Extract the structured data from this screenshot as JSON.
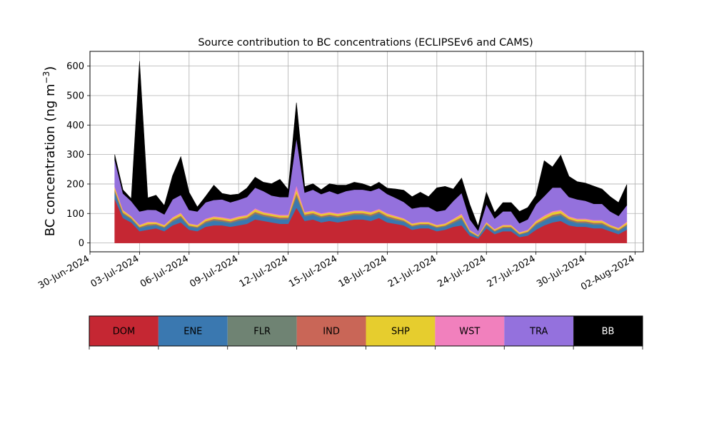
{
  "chart_data": {
    "type": "area",
    "title": "Source contribution to BC concentrations (ECLIPSEv6 and CAMS)",
    "ylabel_main": "BC concentration (ng m",
    "ylabel_exp": "−3",
    "ylabel_close": ")",
    "xlabel": "",
    "ylim": [
      -30,
      650
    ],
    "yticks": [
      0,
      100,
      200,
      300,
      400,
      500,
      600
    ],
    "x_range": [
      "2024-06-30T00:00",
      "2024-08-02T12:00"
    ],
    "xticks": [
      {
        "date": "2024-06-30",
        "label": "30-Jun-2024"
      },
      {
        "date": "2024-07-03",
        "label": "03-Jul-2024"
      },
      {
        "date": "2024-07-06",
        "label": "06-Jul-2024"
      },
      {
        "date": "2024-07-09",
        "label": "09-Jul-2024"
      },
      {
        "date": "2024-07-12",
        "label": "12-Jul-2024"
      },
      {
        "date": "2024-07-15",
        "label": "15-Jul-2024"
      },
      {
        "date": "2024-07-18",
        "label": "18-Jul-2024"
      },
      {
        "date": "2024-07-21",
        "label": "21-Jul-2024"
      },
      {
        "date": "2024-07-24",
        "label": "24-Jul-2024"
      },
      {
        "date": "2024-07-27",
        "label": "27-Jul-2024"
      },
      {
        "date": "2024-07-30",
        "label": "30-Jul-2024"
      },
      {
        "date": "2024-08-02",
        "label": "02-Aug-2024"
      }
    ],
    "grid": true,
    "legend_placement": "bottom colorbar",
    "series": [
      {
        "name": "DOM",
        "color": "#c52733"
      },
      {
        "name": "ENE",
        "color": "#3a78b0"
      },
      {
        "name": "FLR",
        "color": "#6f8373"
      },
      {
        "name": "IND",
        "color": "#c96657"
      },
      {
        "name": "SHP",
        "color": "#e6cd2e"
      },
      {
        "name": "WST",
        "color": "#f180bd"
      },
      {
        "name": "TRA",
        "color": "#9471dd"
      },
      {
        "name": "BB",
        "color": "#000000"
      }
    ],
    "x": [
      "2024-07-01T12:00",
      "2024-07-02T00:00",
      "2024-07-02T12:00",
      "2024-07-03T00:00",
      "2024-07-03T12:00",
      "2024-07-04T00:00",
      "2024-07-04T12:00",
      "2024-07-05T00:00",
      "2024-07-05T12:00",
      "2024-07-06T00:00",
      "2024-07-06T12:00",
      "2024-07-07T00:00",
      "2024-07-07T12:00",
      "2024-07-08T00:00",
      "2024-07-08T12:00",
      "2024-07-09T00:00",
      "2024-07-09T12:00",
      "2024-07-10T00:00",
      "2024-07-10T12:00",
      "2024-07-11T00:00",
      "2024-07-11T12:00",
      "2024-07-12T00:00",
      "2024-07-12T12:00",
      "2024-07-13T00:00",
      "2024-07-13T12:00",
      "2024-07-14T00:00",
      "2024-07-14T12:00",
      "2024-07-15T00:00",
      "2024-07-15T12:00",
      "2024-07-16T00:00",
      "2024-07-16T12:00",
      "2024-07-17T00:00",
      "2024-07-17T12:00",
      "2024-07-18T00:00",
      "2024-07-18T12:00",
      "2024-07-19T00:00",
      "2024-07-19T12:00",
      "2024-07-20T00:00",
      "2024-07-20T12:00",
      "2024-07-21T00:00",
      "2024-07-21T12:00",
      "2024-07-22T00:00",
      "2024-07-22T12:00",
      "2024-07-23T00:00",
      "2024-07-23T12:00",
      "2024-07-24T00:00",
      "2024-07-24T12:00",
      "2024-07-25T00:00",
      "2024-07-25T12:00",
      "2024-07-26T00:00",
      "2024-07-26T12:00",
      "2024-07-27T00:00",
      "2024-07-27T12:00",
      "2024-07-28T00:00",
      "2024-07-28T12:00",
      "2024-07-29T00:00",
      "2024-07-29T12:00",
      "2024-07-30T00:00",
      "2024-07-30T12:00",
      "2024-07-31T00:00",
      "2024-07-31T12:00",
      "2024-08-01T00:00",
      "2024-08-01T12:00"
    ],
    "stack_values": {
      "DOM": [
        150,
        85,
        70,
        40,
        45,
        50,
        40,
        60,
        70,
        45,
        40,
        55,
        60,
        60,
        55,
        60,
        65,
        80,
        75,
        70,
        65,
        65,
        120,
        75,
        80,
        70,
        75,
        70,
        75,
        80,
        80,
        75,
        85,
        70,
        65,
        60,
        45,
        50,
        50,
        40,
        45,
        55,
        60,
        25,
        15,
        50,
        30,
        40,
        40,
        20,
        25,
        45,
        60,
        70,
        75,
        60,
        55,
        55,
        50,
        50,
        40,
        30,
        45
      ],
      "ENE": [
        20,
        12,
        10,
        10,
        12,
        10,
        10,
        12,
        15,
        10,
        10,
        12,
        15,
        12,
        12,
        15,
        15,
        18,
        15,
        15,
        15,
        15,
        35,
        15,
        15,
        15,
        15,
        15,
        15,
        15,
        15,
        15,
        15,
        15,
        12,
        12,
        10,
        10,
        10,
        10,
        10,
        12,
        20,
        10,
        5,
        10,
        8,
        10,
        10,
        8,
        10,
        15,
        15,
        18,
        18,
        15,
        12,
        12,
        12,
        12,
        10,
        10,
        12
      ],
      "FLR": [
        6,
        4,
        3,
        3,
        4,
        3,
        3,
        4,
        5,
        3,
        3,
        4,
        4,
        4,
        4,
        4,
        4,
        5,
        4,
        4,
        4,
        4,
        8,
        4,
        4,
        4,
        4,
        4,
        4,
        4,
        4,
        4,
        4,
        4,
        4,
        3,
        3,
        3,
        3,
        3,
        3,
        4,
        5,
        2,
        2,
        3,
        2,
        3,
        3,
        2,
        2,
        4,
        4,
        5,
        5,
        4,
        4,
        4,
        4,
        4,
        3,
        3,
        4
      ],
      "IND": [
        4,
        3,
        2,
        2,
        3,
        2,
        2,
        3,
        3,
        2,
        2,
        3,
        3,
        3,
        3,
        3,
        3,
        3,
        3,
        3,
        3,
        3,
        6,
        3,
        3,
        3,
        3,
        3,
        3,
        3,
        3,
        3,
        3,
        3,
        3,
        2,
        2,
        2,
        2,
        2,
        2,
        3,
        3,
        2,
        1,
        2,
        2,
        2,
        2,
        1,
        2,
        3,
        3,
        3,
        3,
        3,
        3,
        3,
        3,
        3,
        2,
        2,
        3
      ],
      "SHP": [
        8,
        6,
        5,
        5,
        6,
        5,
        5,
        6,
        7,
        5,
        5,
        6,
        6,
        6,
        6,
        6,
        6,
        8,
        6,
        6,
        6,
        6,
        12,
        6,
        6,
        6,
        6,
        6,
        6,
        6,
        6,
        6,
        6,
        6,
        6,
        5,
        5,
        5,
        5,
        5,
        5,
        6,
        8,
        4,
        3,
        5,
        4,
        5,
        5,
        4,
        4,
        6,
        8,
        8,
        8,
        6,
        6,
        6,
        6,
        6,
        5,
        5,
        6
      ],
      "WST": [
        4,
        3,
        2,
        2,
        3,
        2,
        2,
        3,
        3,
        2,
        2,
        3,
        3,
        3,
        3,
        3,
        3,
        4,
        3,
        3,
        3,
        3,
        15,
        3,
        3,
        3,
        3,
        3,
        3,
        3,
        3,
        3,
        3,
        3,
        3,
        2,
        2,
        2,
        2,
        2,
        2,
        3,
        4,
        2,
        1,
        2,
        2,
        2,
        2,
        2,
        2,
        3,
        4,
        4,
        4,
        3,
        3,
        3,
        3,
        3,
        2,
        2,
        3
      ],
      "TRA": [
        90,
        55,
        50,
        45,
        40,
        40,
        35,
        60,
        60,
        45,
        45,
        55,
        55,
        60,
        55,
        55,
        60,
        70,
        70,
        60,
        60,
        60,
        160,
        65,
        70,
        65,
        70,
        65,
        70,
        70,
        70,
        70,
        70,
        65,
        60,
        55,
        50,
        50,
        50,
        45,
        45,
        60,
        70,
        35,
        15,
        60,
        35,
        45,
        45,
        30,
        35,
        55,
        65,
        80,
        75,
        65,
        65,
        60,
        55,
        55,
        45,
        40,
        55
      ],
      "BB": [
        18,
        12,
        8,
        510,
        40,
        50,
        30,
        80,
        130,
        60,
        15,
        20,
        50,
        20,
        25,
        20,
        30,
        35,
        30,
        40,
        60,
        25,
        120,
        20,
        20,
        15,
        25,
        30,
        20,
        25,
        20,
        15,
        20,
        20,
        30,
        40,
        40,
        50,
        35,
        80,
        80,
        40,
        50,
        50,
        15,
        40,
        20,
        30,
        30,
        40,
        40,
        30,
        120,
        70,
        110,
        70,
        60,
        60,
        60,
        50,
        50,
        45,
        70
      ]
    },
    "colorbar": [
      "DOM",
      "ENE",
      "FLR",
      "IND",
      "SHP",
      "WST",
      "TRA",
      "BB"
    ]
  }
}
